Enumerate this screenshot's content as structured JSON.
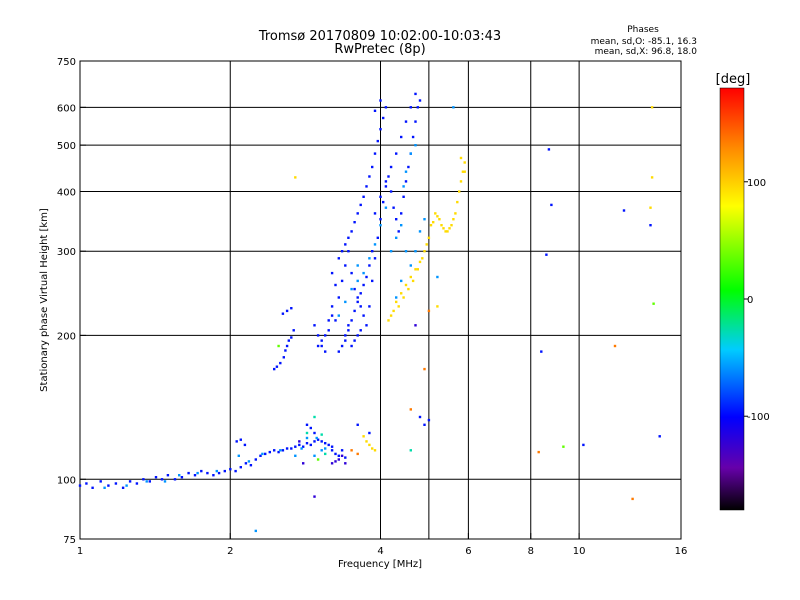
{
  "header": {
    "title_line1": "Tromsø 20170809 10:02:00-10:03:43",
    "title_line2": "RwPretec (8p)",
    "phase_title": "Phases",
    "phase_o": "mean, sd,O: -85.1, 16.3",
    "phase_x": "mean, sd,X:  96.8, 18.0"
  },
  "chart_data": {
    "type": "scatter",
    "title": "Tromsø 20170809 10:02:00-10:03:43",
    "subtitle": "RwPretec (8p)",
    "xlabel": "Frequency [MHz]",
    "ylabel": "Stationary phase Virtual Height [km]",
    "x_scale": "log",
    "y_scale": "log",
    "xlim": [
      1,
      16
    ],
    "ylim": [
      75,
      750
    ],
    "x_ticks": [
      1,
      2,
      4,
      6,
      8,
      10,
      16
    ],
    "x_tick_labels": [
      "1",
      "2",
      "4",
      "6",
      "8",
      "10",
      "16"
    ],
    "y_ticks": [
      75,
      100,
      200,
      300,
      400,
      500,
      600,
      750
    ],
    "y_tick_labels": [
      "75",
      "100",
      "200",
      "300",
      "400",
      "500",
      "600",
      "750"
    ],
    "x_gridlines": [
      2,
      4,
      5,
      6,
      8,
      10
    ],
    "y_gridlines": [
      100,
      200,
      300,
      400,
      500,
      600
    ],
    "colorbar": {
      "label": "[deg]",
      "range": [
        -180,
        180
      ],
      "ticks": [
        100,
        0,
        -100
      ],
      "tick_labels": [
        "100",
        "0",
        "-100"
      ]
    },
    "series": [
      {
        "phase_deg": -95,
        "points": [
          [
            1.0,
            97
          ],
          [
            1.03,
            98
          ],
          [
            1.06,
            96
          ],
          [
            1.1,
            99
          ],
          [
            1.14,
            97
          ],
          [
            1.18,
            98
          ],
          [
            1.22,
            96
          ],
          [
            1.26,
            99
          ],
          [
            1.3,
            98
          ],
          [
            1.34,
            100
          ],
          [
            1.38,
            99
          ],
          [
            1.42,
            101
          ],
          [
            1.46,
            100
          ],
          [
            1.5,
            102
          ],
          [
            1.55,
            100
          ],
          [
            1.6,
            101
          ],
          [
            1.65,
            103
          ],
          [
            1.7,
            102
          ],
          [
            1.75,
            104
          ],
          [
            1.8,
            103
          ],
          [
            1.85,
            102
          ],
          [
            1.9,
            103
          ],
          [
            1.95,
            104
          ],
          [
            2.0,
            105
          ],
          [
            2.05,
            104
          ],
          [
            2.1,
            106
          ],
          [
            2.15,
            108
          ],
          [
            2.2,
            107
          ],
          [
            2.25,
            110
          ],
          [
            2.3,
            112
          ],
          [
            2.35,
            113
          ],
          [
            2.4,
            114
          ],
          [
            2.45,
            115
          ],
          [
            2.5,
            114
          ],
          [
            2.55,
            115
          ],
          [
            2.6,
            116
          ],
          [
            2.65,
            116
          ],
          [
            2.7,
            117
          ],
          [
            2.75,
            118
          ],
          [
            2.8,
            117
          ],
          [
            2.85,
            119
          ],
          [
            2.9,
            118
          ],
          [
            2.95,
            120
          ],
          [
            3.0,
            121
          ],
          [
            3.05,
            120
          ],
          [
            3.1,
            119
          ],
          [
            3.15,
            118
          ],
          [
            3.2,
            117
          ],
          [
            2.06,
            120
          ],
          [
            2.1,
            121
          ],
          [
            2.14,
            118
          ],
          [
            2.9,
            128
          ],
          [
            2.95,
            125
          ],
          [
            2.85,
            130
          ],
          [
            2.45,
            170
          ],
          [
            2.48,
            172
          ],
          [
            2.52,
            175
          ],
          [
            2.56,
            180
          ],
          [
            2.58,
            186
          ],
          [
            2.6,
            190
          ],
          [
            2.62,
            195
          ],
          [
            2.65,
            198
          ],
          [
            2.68,
            205
          ],
          [
            2.55,
            222
          ],
          [
            2.6,
            225
          ],
          [
            2.65,
            228
          ],
          [
            2.95,
            210
          ],
          [
            3.0,
            200
          ],
          [
            3.05,
            190
          ],
          [
            3.1,
            185
          ],
          [
            3.15,
            215
          ],
          [
            3.2,
            230
          ],
          [
            3.25,
            255
          ],
          [
            3.2,
            270
          ],
          [
            3.3,
            290
          ],
          [
            3.35,
            300
          ],
          [
            3.4,
            310
          ],
          [
            3.45,
            320
          ],
          [
            3.5,
            330
          ],
          [
            3.55,
            345
          ],
          [
            3.6,
            360
          ],
          [
            3.65,
            375
          ],
          [
            3.7,
            390
          ],
          [
            3.75,
            410
          ],
          [
            3.8,
            430
          ],
          [
            3.85,
            450
          ],
          [
            3.9,
            480
          ],
          [
            3.95,
            510
          ],
          [
            4.0,
            540
          ],
          [
            4.05,
            570
          ],
          [
            4.1,
            600
          ],
          [
            4.0,
            620
          ],
          [
            3.9,
            590
          ],
          [
            3.3,
            240
          ],
          [
            3.35,
            260
          ],
          [
            3.4,
            280
          ],
          [
            3.45,
            300
          ],
          [
            3.5,
            270
          ],
          [
            3.55,
            250
          ],
          [
            3.6,
            240
          ],
          [
            3.65,
            230
          ],
          [
            3.7,
            220
          ],
          [
            3.75,
            210
          ],
          [
            3.8,
            230
          ],
          [
            3.85,
            260
          ],
          [
            3.9,
            290
          ],
          [
            3.95,
            320
          ],
          [
            4.0,
            350
          ],
          [
            4.05,
            380
          ],
          [
            4.1,
            410
          ],
          [
            4.15,
            430
          ],
          [
            4.2,
            400
          ],
          [
            4.25,
            370
          ],
          [
            4.3,
            350
          ],
          [
            4.35,
            330
          ],
          [
            4.4,
            360
          ],
          [
            4.45,
            390
          ],
          [
            4.5,
            420
          ],
          [
            4.55,
            450
          ],
          [
            4.6,
            480
          ],
          [
            4.65,
            520
          ],
          [
            4.7,
            560
          ],
          [
            4.75,
            600
          ],
          [
            4.8,
            620
          ],
          [
            4.7,
            640
          ],
          [
            4.6,
            600
          ],
          [
            4.5,
            560
          ],
          [
            4.4,
            520
          ],
          [
            4.3,
            480
          ],
          [
            4.2,
            450
          ],
          [
            4.1,
            420
          ],
          [
            4.0,
            390
          ],
          [
            3.9,
            360
          ],
          [
            3.4,
            200
          ],
          [
            3.45,
            210
          ],
          [
            3.5,
            215
          ],
          [
            3.55,
            225
          ],
          [
            3.6,
            235
          ],
          [
            3.65,
            245
          ],
          [
            3.7,
            255
          ],
          [
            3.75,
            265
          ],
          [
            3.8,
            280
          ],
          [
            3.85,
            300
          ],
          [
            3.3,
            185
          ],
          [
            3.35,
            190
          ],
          [
            3.4,
            195
          ],
          [
            3.45,
            205
          ],
          [
            3.5,
            190
          ],
          [
            3.55,
            195
          ],
          [
            3.6,
            200
          ],
          [
            3.65,
            205
          ],
          [
            3.2,
            220
          ],
          [
            3.25,
            215
          ],
          [
            3.15,
            205
          ],
          [
            3.1,
            200
          ],
          [
            3.05,
            195
          ],
          [
            3.0,
            190
          ],
          [
            3.2,
            115
          ],
          [
            3.25,
            113
          ],
          [
            3.3,
            112
          ],
          [
            3.35,
            115
          ],
          [
            3.4,
            111
          ],
          [
            3.6,
            130
          ],
          [
            3.8,
            125
          ],
          [
            4.8,
            135
          ],
          [
            4.9,
            130
          ],
          [
            5.0,
            133
          ],
          [
            8.4,
            185
          ],
          [
            8.6,
            295
          ],
          [
            8.8,
            375
          ],
          [
            8.7,
            490
          ],
          [
            10.2,
            118
          ],
          [
            12.3,
            365
          ],
          [
            13.9,
            340
          ],
          [
            14.5,
            123
          ]
        ]
      },
      {
        "phase_deg": -60,
        "points": [
          [
            1.12,
            96
          ],
          [
            1.24,
            97
          ],
          [
            1.36,
            99
          ],
          [
            1.48,
            99
          ],
          [
            1.58,
            102
          ],
          [
            1.72,
            103
          ],
          [
            1.88,
            104
          ],
          [
            2.08,
            112
          ],
          [
            2.18,
            109
          ],
          [
            2.32,
            113
          ],
          [
            2.52,
            115
          ],
          [
            2.78,
            116
          ],
          [
            2.98,
            122
          ],
          [
            3.1,
            116
          ],
          [
            3.6,
            260
          ],
          [
            3.7,
            270
          ],
          [
            3.8,
            290
          ],
          [
            3.9,
            310
          ],
          [
            4.0,
            340
          ],
          [
            4.1,
            370
          ],
          [
            4.2,
            300
          ],
          [
            4.3,
            320
          ],
          [
            4.4,
            340
          ],
          [
            4.5,
            300
          ],
          [
            4.6,
            280
          ],
          [
            4.7,
            300
          ],
          [
            4.8,
            330
          ],
          [
            4.9,
            350
          ],
          [
            4.4,
            260
          ],
          [
            4.3,
            240
          ],
          [
            3.5,
            250
          ],
          [
            3.6,
            280
          ],
          [
            3.4,
            235
          ],
          [
            3.3,
            220
          ],
          [
            2.7,
            112
          ],
          [
            2.85,
            122
          ],
          [
            2.95,
            112
          ],
          [
            4.6,
            480
          ],
          [
            4.7,
            500
          ],
          [
            4.5,
            440
          ],
          [
            4.45,
            410
          ],
          [
            5.2,
            265
          ],
          [
            5.6,
            600
          ],
          [
            3.05,
            115
          ],
          [
            2.25,
            78
          ]
        ]
      },
      {
        "phase_deg": -30,
        "points": [
          [
            2.95,
            135
          ],
          [
            3.05,
            124
          ],
          [
            2.85,
            125
          ],
          [
            3.1,
            113
          ],
          [
            4.6,
            115
          ]
        ]
      },
      {
        "phase_deg": 30,
        "points": [
          [
            2.5,
            190
          ],
          [
            3.0,
            110
          ],
          [
            9.3,
            117
          ],
          [
            14.1,
            233
          ]
        ]
      },
      {
        "phase_deg": -120,
        "points": [
          [
            3.2,
            108
          ],
          [
            3.3,
            110
          ],
          [
            3.4,
            108
          ],
          [
            3.25,
            109
          ],
          [
            3.35,
            112
          ],
          [
            2.95,
            92
          ],
          [
            2.75,
            120
          ],
          [
            2.8,
            108
          ],
          [
            4.7,
            210
          ]
        ]
      },
      {
        "phase_deg": 95,
        "points": [
          [
            4.2,
            220
          ],
          [
            4.3,
            235
          ],
          [
            4.4,
            245
          ],
          [
            4.5,
            255
          ],
          [
            4.6,
            265
          ],
          [
            4.7,
            275
          ],
          [
            4.8,
            285
          ],
          [
            4.9,
            300
          ],
          [
            5.0,
            320
          ],
          [
            5.1,
            345
          ],
          [
            5.2,
            355
          ],
          [
            5.3,
            340
          ],
          [
            5.4,
            330
          ],
          [
            5.5,
            335
          ],
          [
            5.6,
            350
          ],
          [
            5.7,
            380
          ],
          [
            5.8,
            420
          ],
          [
            5.9,
            460
          ],
          [
            5.85,
            440
          ],
          [
            5.75,
            400
          ],
          [
            5.65,
            360
          ],
          [
            5.55,
            340
          ],
          [
            5.45,
            330
          ],
          [
            5.35,
            335
          ],
          [
            5.25,
            350
          ],
          [
            5.15,
            360
          ],
          [
            5.05,
            340
          ],
          [
            4.95,
            310
          ],
          [
            4.85,
            290
          ],
          [
            4.75,
            275
          ],
          [
            4.65,
            260
          ],
          [
            4.55,
            250
          ],
          [
            4.45,
            240
          ],
          [
            4.35,
            230
          ],
          [
            4.25,
            225
          ],
          [
            4.15,
            215
          ],
          [
            3.8,
            118
          ],
          [
            3.85,
            116
          ],
          [
            3.9,
            115
          ],
          [
            3.75,
            120
          ],
          [
            3.7,
            123
          ],
          [
            2.7,
            428
          ],
          [
            5.9,
            440
          ],
          [
            5.8,
            470
          ],
          [
            14.0,
            428
          ],
          [
            13.9,
            370
          ],
          [
            14.0,
            600
          ],
          [
            5.2,
            230
          ]
        ]
      },
      {
        "phase_deg": 135,
        "points": [
          [
            3.5,
            115
          ],
          [
            3.6,
            113
          ],
          [
            4.6,
            140
          ],
          [
            12.8,
            91
          ],
          [
            11.8,
            190
          ],
          [
            8.3,
            114
          ],
          [
            5.0,
            225
          ],
          [
            4.9,
            170
          ]
        ]
      }
    ]
  }
}
